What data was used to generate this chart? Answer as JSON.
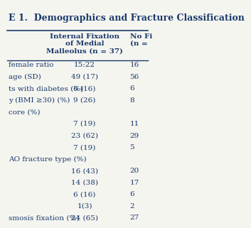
{
  "title": "E 1.  Demographics and Fracture Classification",
  "col1_header": "Internal Fixation\nof Medial\nMalleolus (n = 37)",
  "col2_header": "No Fi\n(n =",
  "rows": [
    {
      "label": "female ratio",
      "col1": "15:22",
      "col2": "16"
    },
    {
      "label": "age (SD)",
      "col1": "49 (17)",
      "col2": "56"
    },
    {
      "label": "ts with diabetes (%)",
      "col1": "6 (16)",
      "col2": "6"
    },
    {
      "label": "y (BMI ≥30) (%)",
      "col1": "9 (26)",
      "col2": "8"
    },
    {
      "label": "core (%)",
      "col1": "",
      "col2": ""
    },
    {
      "label": "",
      "col1": "7 (19)",
      "col2": "11"
    },
    {
      "label": "",
      "col1": "23 (62)",
      "col2": "29"
    },
    {
      "label": "",
      "col1": "7 (19)",
      "col2": "5"
    },
    {
      "label": "AO fracture type (%)",
      "col1": "",
      "col2": ""
    },
    {
      "label": "",
      "col1": "16 (43)",
      "col2": "20"
    },
    {
      "label": "",
      "col1": "14 (38)",
      "col2": "17"
    },
    {
      "label": "",
      "col1": "6 (16)",
      "col2": "6"
    },
    {
      "label": "",
      "col1": "1(3)",
      "col2": "2"
    },
    {
      "label": "smosis fixation (%)",
      "col1": "24 (65)",
      "col2": "27"
    }
  ],
  "bg_color": "#f5f5f0",
  "text_color": "#1a3a6b",
  "header_color": "#1a3a6b",
  "title_color": "#1a3a6b",
  "line_color": "#1a3a6b",
  "fontsize": 7.5,
  "header_fontsize": 7.5,
  "title_fontsize": 9.0
}
